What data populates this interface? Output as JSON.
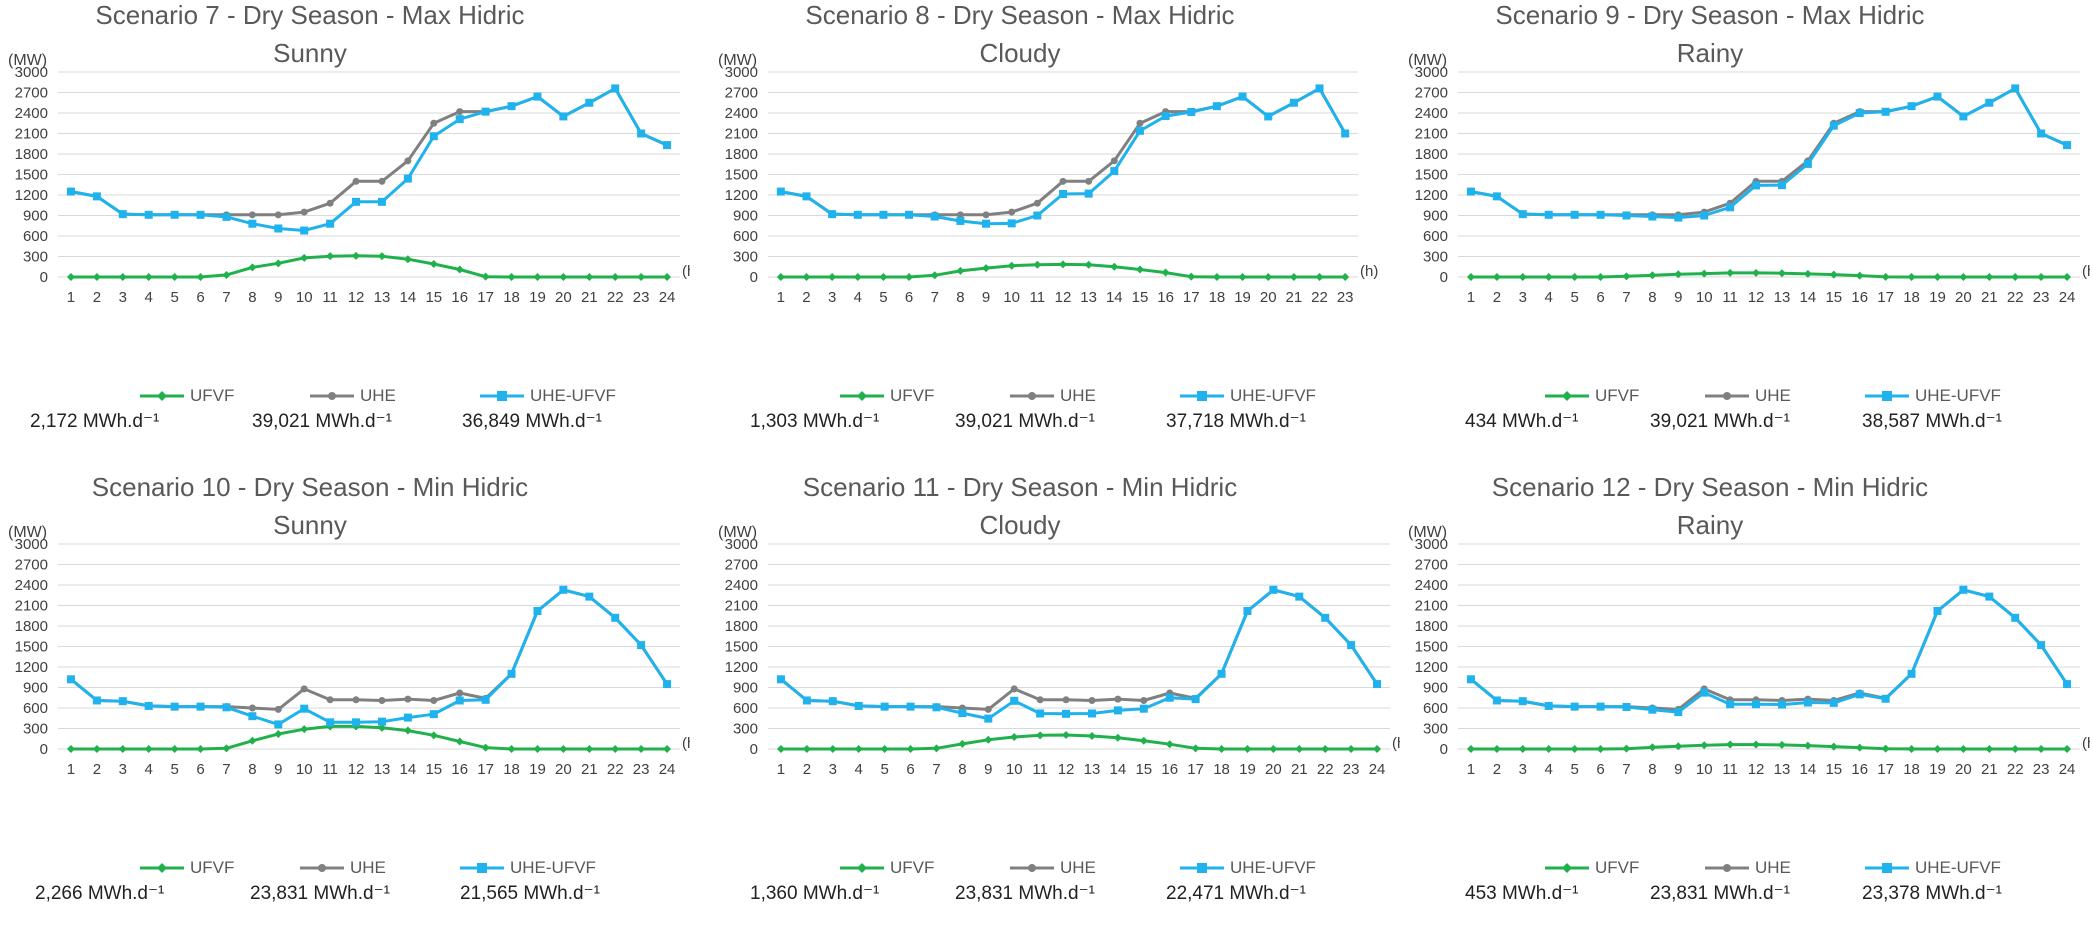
{
  "colors": {
    "UFVF": "#21b14c",
    "UHE": "#808080",
    "UHE-UFVF": "#1fb2ec",
    "grid": "#d9d9d9"
  },
  "y_unit": "(MW)",
  "x_unit": "(h)",
  "chart_data": [
    {
      "type": "line",
      "title_line1": "Scenario 7 - Dry Season - Max Hidric",
      "title_line2": "Sunny",
      "ylim": [
        0,
        3000
      ],
      "yticks": [
        0,
        300,
        600,
        900,
        1200,
        1500,
        1800,
        2100,
        2400,
        2700,
        3000
      ],
      "x": [
        1,
        2,
        3,
        4,
        5,
        6,
        7,
        8,
        9,
        10,
        11,
        12,
        13,
        14,
        15,
        16,
        17,
        18,
        19,
        20,
        21,
        22,
        23,
        24
      ],
      "series": [
        {
          "name": "UFVF",
          "values": [
            0,
            0,
            0,
            0,
            0,
            0,
            30,
            140,
            200,
            280,
            305,
            310,
            305,
            260,
            190,
            110,
            5,
            0,
            0,
            0,
            0,
            0,
            0,
            0
          ]
        },
        {
          "name": "UHE",
          "values": [
            1250,
            1180,
            920,
            910,
            910,
            910,
            910,
            910,
            910,
            950,
            1080,
            1400,
            1400,
            1700,
            2250,
            2420,
            2420,
            2500,
            2640,
            2350,
            2550,
            2760,
            2100,
            1930
          ]
        },
        {
          "name": "UHE-UFVF",
          "values": [
            1250,
            1180,
            920,
            910,
            910,
            910,
            880,
            780,
            710,
            680,
            780,
            1100,
            1100,
            1440,
            2060,
            2310,
            2420,
            2500,
            2640,
            2350,
            2550,
            2760,
            2100,
            1930
          ]
        }
      ],
      "energy": [
        "2,172 MWh.d⁻¹",
        "39,021 MWh.d⁻¹",
        "36,849 MWh.d⁻¹"
      ]
    },
    {
      "type": "line",
      "title_line1": "Scenario 8 - Dry Season - Max Hidric",
      "title_line2": "Cloudy",
      "ylim": [
        0,
        3000
      ],
      "yticks": [
        0,
        300,
        600,
        900,
        1200,
        1500,
        1800,
        2100,
        2400,
        2700,
        3000
      ],
      "x": [
        1,
        2,
        3,
        4,
        5,
        6,
        7,
        8,
        9,
        10,
        11,
        12,
        13,
        14,
        15,
        16,
        17,
        18,
        19,
        20,
        21,
        22,
        23
      ],
      "series": [
        {
          "name": "UFVF",
          "values": [
            0,
            0,
            0,
            0,
            0,
            0,
            25,
            90,
            130,
            165,
            180,
            185,
            180,
            150,
            110,
            65,
            5,
            0,
            0,
            0,
            0,
            0,
            0
          ]
        },
        {
          "name": "UHE",
          "values": [
            1250,
            1180,
            920,
            910,
            910,
            910,
            910,
            910,
            910,
            950,
            1080,
            1400,
            1400,
            1700,
            2250,
            2420,
            2420,
            2500,
            2640,
            2350,
            2550,
            2760,
            2100
          ]
        },
        {
          "name": "UHE-UFVF",
          "values": [
            1250,
            1180,
            920,
            910,
            910,
            910,
            885,
            820,
            780,
            785,
            900,
            1215,
            1220,
            1550,
            2140,
            2355,
            2415,
            2500,
            2640,
            2350,
            2550,
            2760,
            2100
          ]
        }
      ],
      "energy": [
        "1,303 MWh.d⁻¹",
        "39,021 MWh.d⁻¹",
        "37,718 MWh.d⁻¹"
      ]
    },
    {
      "type": "line",
      "title_line1": "Scenario 9 - Dry Season - Max Hidric",
      "title_line2": "Rainy",
      "ylim": [
        0,
        3000
      ],
      "yticks": [
        0,
        300,
        600,
        900,
        1200,
        1500,
        1800,
        2100,
        2400,
        2700,
        3000
      ],
      "x": [
        1,
        2,
        3,
        4,
        5,
        6,
        7,
        8,
        9,
        10,
        11,
        12,
        13,
        14,
        15,
        16,
        17,
        18,
        19,
        20,
        21,
        22,
        23,
        24
      ],
      "series": [
        {
          "name": "UFVF",
          "values": [
            0,
            0,
            0,
            0,
            0,
            0,
            10,
            25,
            40,
            50,
            60,
            60,
            55,
            45,
            35,
            20,
            2,
            0,
            0,
            0,
            0,
            0,
            0,
            0
          ]
        },
        {
          "name": "UHE",
          "values": [
            1250,
            1180,
            920,
            910,
            910,
            910,
            910,
            910,
            910,
            950,
            1080,
            1400,
            1400,
            1700,
            2250,
            2420,
            2420,
            2500,
            2640,
            2350,
            2550,
            2760,
            2100,
            1930
          ]
        },
        {
          "name": "UHE-UFVF",
          "values": [
            1250,
            1180,
            920,
            910,
            910,
            910,
            900,
            885,
            870,
            900,
            1020,
            1340,
            1345,
            1655,
            2215,
            2400,
            2418,
            2500,
            2640,
            2350,
            2550,
            2760,
            2100,
            1930
          ]
        }
      ],
      "energy": [
        "434 MWh.d⁻¹",
        "39,021 MWh.d⁻¹",
        "38,587 MWh.d⁻¹"
      ]
    },
    {
      "type": "line",
      "title_line1": "Scenario 10 - Dry Season - Min Hidric",
      "title_line2": "Sunny",
      "ylim": [
        0,
        3000
      ],
      "yticks": [
        0,
        300,
        600,
        900,
        1200,
        1500,
        1800,
        2100,
        2400,
        2700,
        3000
      ],
      "x": [
        1,
        2,
        3,
        4,
        5,
        6,
        7,
        8,
        9,
        10,
        11,
        12,
        13,
        14,
        15,
        16,
        17,
        18,
        19,
        20,
        21,
        22,
        23,
        24
      ],
      "series": [
        {
          "name": "UFVF",
          "values": [
            0,
            0,
            0,
            0,
            0,
            0,
            10,
            120,
            220,
            290,
            330,
            330,
            310,
            270,
            200,
            110,
            20,
            0,
            0,
            0,
            0,
            0,
            0,
            0
          ]
        },
        {
          "name": "UHE",
          "values": [
            1020,
            710,
            700,
            630,
            620,
            620,
            620,
            600,
            580,
            880,
            720,
            720,
            710,
            730,
            710,
            820,
            740,
            1100,
            2020,
            2330,
            2230,
            1920,
            1520,
            950
          ]
        },
        {
          "name": "UHE-UFVF",
          "values": [
            1020,
            710,
            700,
            630,
            620,
            620,
            610,
            480,
            360,
            590,
            390,
            390,
            400,
            460,
            510,
            710,
            720,
            1100,
            2020,
            2330,
            2230,
            1920,
            1520,
            950
          ]
        }
      ],
      "energy": [
        "2,266 MWh.d⁻¹",
        "23,831 MWh.d⁻¹",
        "21,565 MWh.d⁻¹"
      ]
    },
    {
      "type": "line",
      "title_line1": "Scenario 11 - Dry Season - Min Hidric",
      "title_line2": "Cloudy",
      "ylim": [
        0,
        3000
      ],
      "yticks": [
        0,
        300,
        600,
        900,
        1200,
        1500,
        1800,
        2100,
        2400,
        2700,
        3000
      ],
      "x": [
        1,
        2,
        3,
        4,
        5,
        6,
        7,
        8,
        9,
        10,
        11,
        12,
        13,
        14,
        15,
        16,
        17,
        18,
        19,
        20,
        21,
        22,
        23,
        24
      ],
      "series": [
        {
          "name": "UFVF",
          "values": [
            0,
            0,
            0,
            0,
            0,
            0,
            10,
            75,
            135,
            175,
            200,
            205,
            190,
            165,
            120,
            70,
            10,
            0,
            0,
            0,
            0,
            0,
            0,
            0
          ]
        },
        {
          "name": "UHE",
          "values": [
            1020,
            710,
            700,
            630,
            620,
            620,
            620,
            600,
            580,
            880,
            720,
            720,
            710,
            730,
            710,
            820,
            740,
            1100,
            2020,
            2330,
            2230,
            1920,
            1520,
            950
          ]
        },
        {
          "name": "UHE-UFVF",
          "values": [
            1020,
            710,
            700,
            630,
            620,
            620,
            610,
            525,
            445,
            705,
            520,
            515,
            520,
            565,
            590,
            750,
            730,
            1100,
            2020,
            2330,
            2230,
            1920,
            1520,
            950
          ]
        }
      ],
      "energy": [
        "1,360 MWh.d⁻¹",
        "23,831 MWh.d⁻¹",
        "22,471 MWh.d⁻¹"
      ]
    },
    {
      "type": "line",
      "title_line1": "Scenario 12 - Dry Season - Min Hidric",
      "title_line2": "Rainy",
      "ylim": [
        0,
        3000
      ],
      "yticks": [
        0,
        300,
        600,
        900,
        1200,
        1500,
        1800,
        2100,
        2400,
        2700,
        3000
      ],
      "x": [
        1,
        2,
        3,
        4,
        5,
        6,
        7,
        8,
        9,
        10,
        11,
        12,
        13,
        14,
        15,
        16,
        17,
        18,
        19,
        20,
        21,
        22,
        23,
        24
      ],
      "series": [
        {
          "name": "UFVF",
          "values": [
            0,
            0,
            0,
            0,
            0,
            0,
            5,
            25,
            40,
            55,
            65,
            65,
            60,
            50,
            35,
            20,
            5,
            0,
            0,
            0,
            0,
            0,
            0,
            0
          ]
        },
        {
          "name": "UHE",
          "values": [
            1020,
            710,
            700,
            630,
            620,
            620,
            620,
            600,
            580,
            880,
            720,
            720,
            710,
            730,
            710,
            820,
            740,
            1100,
            2020,
            2330,
            2230,
            1920,
            1520,
            950
          ]
        },
        {
          "name": "UHE-UFVF",
          "values": [
            1020,
            710,
            700,
            630,
            620,
            620,
            615,
            575,
            540,
            825,
            655,
            655,
            650,
            680,
            675,
            800,
            735,
            1100,
            2020,
            2330,
            2230,
            1920,
            1520,
            950
          ]
        }
      ],
      "energy": [
        "453 MWh.d⁻¹",
        "23,831 MWh.d⁻¹",
        "23,378 MWh.d⁻¹"
      ]
    }
  ]
}
